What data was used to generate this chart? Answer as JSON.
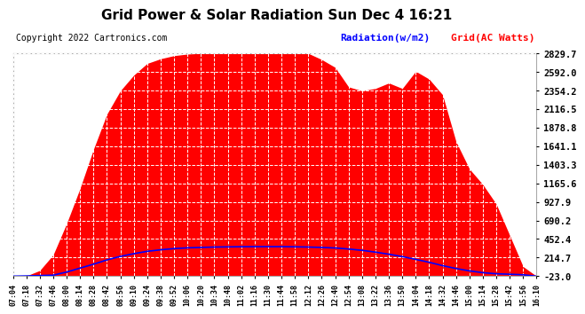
{
  "title": "Grid Power & Solar Radiation Sun Dec 4 16:21",
  "copyright": "Copyright 2022 Cartronics.com",
  "legend_radiation": "Radiation(w/m2)",
  "legend_grid": "Grid(AC Watts)",
  "yticks": [
    -23.0,
    214.7,
    452.4,
    690.2,
    927.9,
    1165.6,
    1403.3,
    1641.1,
    1878.8,
    2116.5,
    2354.2,
    2592.0,
    2829.7
  ],
  "ymin": -23.0,
  "ymax": 2829.7,
  "bg_color": "#ffffff",
  "fill_color": "#ff0000",
  "line_color_radiation": "#0000ff",
  "line_color_grid": "#ff0000",
  "title_fontsize": 11,
  "copyright_fontsize": 7,
  "legend_fontsize": 8,
  "ytick_fontsize": 7.5,
  "xtick_fontsize": 6,
  "x_times": [
    "07:04",
    "07:18",
    "07:32",
    "07:46",
    "08:00",
    "08:14",
    "08:28",
    "08:42",
    "08:56",
    "09:10",
    "09:24",
    "09:38",
    "09:52",
    "10:06",
    "10:20",
    "10:34",
    "10:48",
    "11:02",
    "11:16",
    "11:30",
    "11:44",
    "11:58",
    "12:12",
    "12:26",
    "12:40",
    "12:54",
    "13:08",
    "13:22",
    "13:36",
    "13:50",
    "14:04",
    "14:18",
    "14:32",
    "14:46",
    "15:00",
    "15:14",
    "15:28",
    "15:42",
    "15:56",
    "16:10"
  ],
  "grid_watts": [
    -23,
    -20,
    50,
    250,
    650,
    1100,
    1600,
    2050,
    2350,
    2550,
    2700,
    2760,
    2800,
    2820,
    2829,
    2829,
    2829,
    2829,
    2829,
    2829,
    2829,
    2829,
    2829,
    2750,
    2650,
    2400,
    2350,
    2380,
    2450,
    2380,
    2600,
    2500,
    2300,
    1700,
    1350,
    1150,
    900,
    500,
    100,
    -23
  ],
  "radiation": [
    -23,
    -20,
    -15,
    -10,
    30,
    80,
    130,
    185,
    230,
    265,
    295,
    315,
    330,
    340,
    345,
    350,
    352,
    354,
    355,
    355,
    355,
    353,
    350,
    345,
    338,
    325,
    308,
    285,
    258,
    228,
    192,
    155,
    112,
    75,
    45,
    22,
    8,
    2,
    -5,
    -23
  ]
}
